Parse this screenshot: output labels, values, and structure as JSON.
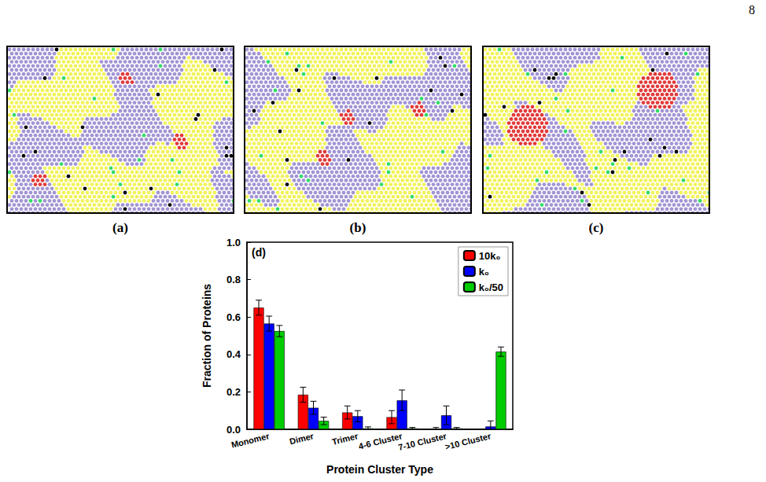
{
  "page_number": "8",
  "panels": [
    {
      "label": "(a)"
    },
    {
      "label": "(b)"
    },
    {
      "label": "(c)"
    }
  ],
  "chart_data": {
    "type": "bar",
    "annotations": [
      "(d)"
    ],
    "x_label": "Protein Cluster Type",
    "y_label": "Fraction of Proteins",
    "categories": [
      "Monomer",
      "Dimer",
      "Trimer",
      "4-6 Cluster",
      "7-10 Cluster",
      ">10 Cluster"
    ],
    "series": [
      {
        "name": "10k₀",
        "color": "#ff0000",
        "values": [
          0.65,
          0.185,
          0.09,
          0.065,
          0.002,
          0
        ],
        "errors": [
          0.04,
          0.04,
          0.035,
          0.035,
          0.008,
          0
        ]
      },
      {
        "name": "k₀",
        "color": "#0000ff",
        "values": [
          0.565,
          0.115,
          0.07,
          0.155,
          0.075,
          0.015
        ],
        "errors": [
          0.04,
          0.035,
          0.03,
          0.055,
          0.05,
          0.03
        ]
      },
      {
        "name": "k₀/50",
        "color": "#00cc00",
        "values": [
          0.525,
          0.045,
          0.005,
          0.005,
          0.005,
          0.415
        ],
        "errors": [
          0.03,
          0.02,
          0.008,
          0.005,
          0.005,
          0.025
        ]
      }
    ],
    "ylim": [
      0,
      1
    ],
    "yticks": [
      {
        "value": 0,
        "label": "0.0"
      },
      0.2,
      0.4,
      0.6,
      0.8,
      {
        "value": 1,
        "label": "1.0"
      }
    ],
    "grid": false,
    "legend": "upper right"
  }
}
